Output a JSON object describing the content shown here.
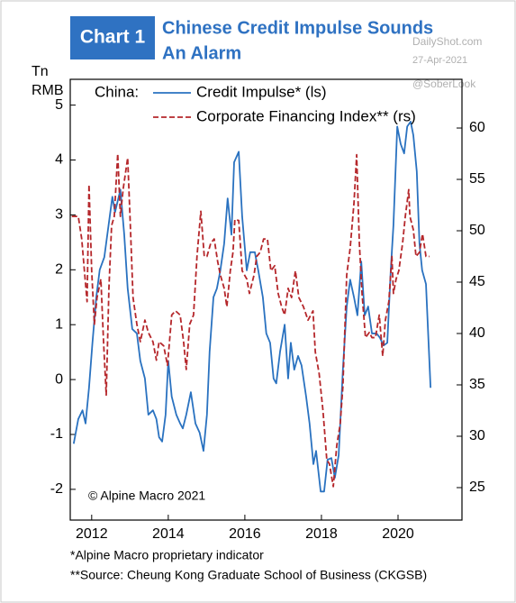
{
  "chart_data": {
    "type": "line",
    "badge": "Chart 1",
    "title_lines": [
      "Chinese Credit Impulse Sounds",
      "An Alarm"
    ],
    "watermarks": [
      "DailyShot.com",
      "27-Apr-2021",
      "@SoberLook"
    ],
    "y_label_lines": [
      "Tn",
      "RMB"
    ],
    "legend_title": "China:",
    "copyright": "© Alpine Macro 2021",
    "footnotes": [
      "*Alpine Macro proprietary indicator",
      "**Source: Cheung Kong Graduate School of Business (CKGSB)"
    ],
    "xlim": [
      2011.44,
      2021.67
    ],
    "xticks": [
      2012,
      2014,
      2016,
      2018,
      2020
    ],
    "ylim": [
      -2.56,
      5.47
    ],
    "yticks": [
      -2,
      -1,
      0,
      1,
      2,
      3,
      4,
      5
    ],
    "y2lim": [
      21.84,
      64.74
    ],
    "y2ticks": [
      25,
      30,
      35,
      40,
      45,
      50,
      55,
      60
    ],
    "series": [
      {
        "name": "Credit Impulse* (ls)",
        "color": "#2a72c0",
        "dash": false,
        "x": [
          2011.53,
          2011.65,
          2011.76,
          2011.84,
          2011.93,
          2012.02,
          2012.12,
          2012.21,
          2012.33,
          2012.54,
          2012.61,
          2012.75,
          2012.85,
          2012.94,
          2013.06,
          2013.18,
          2013.27,
          2013.39,
          2013.48,
          2013.6,
          2013.69,
          2013.76,
          2013.84,
          2013.93,
          2014.0,
          2014.09,
          2014.21,
          2014.31,
          2014.38,
          2014.47,
          2014.59,
          2014.71,
          2014.82,
          2014.92,
          2015.01,
          2015.08,
          2015.18,
          2015.27,
          2015.36,
          2015.46,
          2015.55,
          2015.65,
          2015.72,
          2015.84,
          2015.93,
          2016.05,
          2016.14,
          2016.26,
          2016.35,
          2016.47,
          2016.56,
          2016.66,
          2016.75,
          2016.82,
          2016.92,
          2017.04,
          2017.13,
          2017.2,
          2017.29,
          2017.39,
          2017.48,
          2017.6,
          2017.69,
          2017.79,
          2017.86,
          2017.98,
          2018.07,
          2018.16,
          2018.26,
          2018.35,
          2018.45,
          2018.56,
          2018.66,
          2018.75,
          2018.85,
          2018.94,
          2019.04,
          2019.13,
          2019.22,
          2019.32,
          2019.44,
          2019.53,
          2019.62,
          2019.72,
          2019.81,
          2019.88,
          2019.98,
          2020.07,
          2020.16,
          2020.24,
          2020.33,
          2020.4,
          2020.49,
          2020.56,
          2020.63,
          2020.73,
          2020.85
        ],
        "values": [
          -1.17,
          -0.72,
          -0.56,
          -0.8,
          -0.15,
          0.67,
          1.5,
          2.0,
          2.23,
          3.33,
          3.05,
          3.46,
          2.64,
          1.66,
          0.92,
          0.84,
          0.34,
          0.02,
          -0.64,
          -0.56,
          -0.72,
          -1.05,
          -1.13,
          -0.64,
          0.34,
          -0.31,
          -0.64,
          -0.8,
          -0.89,
          -0.64,
          -0.23,
          -0.8,
          -0.97,
          -1.3,
          -0.64,
          0.51,
          1.5,
          1.66,
          1.99,
          2.48,
          3.3,
          2.64,
          3.96,
          4.15,
          2.97,
          1.99,
          2.32,
          2.32,
          1.99,
          1.5,
          0.84,
          0.67,
          0.02,
          -0.07,
          0.51,
          1.0,
          0.02,
          0.67,
          0.18,
          0.43,
          0.26,
          -0.31,
          -0.8,
          -1.54,
          -1.3,
          -2.04,
          -2.04,
          -1.46,
          -1.43,
          -1.79,
          -1.38,
          0.18,
          1.33,
          1.82,
          1.5,
          1.17,
          2.15,
          1.17,
          1.33,
          0.84,
          0.84,
          0.76,
          0.62,
          0.67,
          1.99,
          2.81,
          4.61,
          4.29,
          4.12,
          4.61,
          4.7,
          4.45,
          3.79,
          2.48,
          1.99,
          1.74,
          -0.15
        ]
      },
      {
        "name": "Corporate Financing Index** (rs)",
        "color": "#b5272b",
        "dash": true,
        "axis": "y2",
        "x": [
          2011.48,
          2011.65,
          2011.74,
          2011.81,
          2011.88,
          2011.93,
          2012.0,
          2012.07,
          2012.14,
          2012.24,
          2012.31,
          2012.38,
          2012.45,
          2012.52,
          2012.59,
          2012.68,
          2012.75,
          2012.82,
          2012.94,
          2013.01,
          2013.08,
          2013.18,
          2013.27,
          2013.39,
          2013.48,
          2013.6,
          2013.69,
          2013.76,
          2013.88,
          2013.98,
          2014.09,
          2014.19,
          2014.31,
          2014.4,
          2014.47,
          2014.56,
          2014.66,
          2014.75,
          2014.85,
          2014.94,
          2015.01,
          2015.11,
          2015.2,
          2015.29,
          2015.36,
          2015.46,
          2015.53,
          2015.62,
          2015.69,
          2015.74,
          2015.84,
          2015.93,
          2016.05,
          2016.12,
          2016.24,
          2016.31,
          2016.4,
          2016.49,
          2016.59,
          2016.68,
          2016.78,
          2016.87,
          2016.96,
          2017.04,
          2017.13,
          2017.22,
          2017.32,
          2017.41,
          2017.53,
          2017.65,
          2017.78,
          2017.84,
          2017.94,
          2018.04,
          2018.14,
          2018.21,
          2018.31,
          2018.4,
          2018.49,
          2018.56,
          2018.66,
          2018.75,
          2018.85,
          2018.92,
          2018.99,
          2019.06,
          2019.15,
          2019.25,
          2019.32,
          2019.41,
          2019.51,
          2019.6,
          2019.67,
          2019.76,
          2019.84,
          2019.88,
          2019.95,
          2020.02,
          2020.12,
          2020.19,
          2020.28,
          2020.31,
          2020.4,
          2020.47,
          2020.56,
          2020.64,
          2020.73,
          2020.82
        ],
        "values": [
          51.4,
          51.4,
          49.2,
          46.1,
          43.1,
          54.5,
          46.1,
          40.9,
          43.5,
          45.3,
          39.2,
          34.0,
          44.4,
          50.5,
          51.4,
          57.5,
          51.4,
          54.0,
          57.1,
          50.5,
          43.5,
          40.9,
          39.2,
          41.3,
          40.1,
          39.2,
          37.4,
          39.2,
          38.8,
          36.9,
          41.8,
          42.2,
          41.8,
          39.2,
          36.5,
          40.9,
          41.8,
          47.5,
          51.9,
          47.5,
          47.5,
          48.8,
          49.2,
          47.0,
          45.7,
          44.4,
          42.6,
          46.1,
          47.9,
          51.1,
          51.0,
          46.1,
          45.3,
          43.9,
          45.7,
          47.5,
          47.9,
          49.2,
          49.2,
          46.1,
          46.6,
          43.9,
          42.6,
          41.8,
          44.4,
          43.5,
          46.1,
          43.5,
          42.6,
          41.3,
          42.2,
          38.2,
          36.1,
          32.5,
          27.7,
          27.3,
          25.1,
          29.1,
          31.2,
          34.8,
          45.7,
          48.3,
          52.7,
          57.4,
          48.8,
          43.9,
          39.6,
          40.1,
          39.6,
          39.6,
          41.8,
          37.8,
          41.3,
          43.1,
          47.5,
          43.9,
          45.3,
          46.1,
          48.8,
          51.4,
          54.0,
          51.4,
          50.1,
          47.5,
          47.9,
          49.7,
          47.5,
          47.5
        ]
      }
    ]
  }
}
